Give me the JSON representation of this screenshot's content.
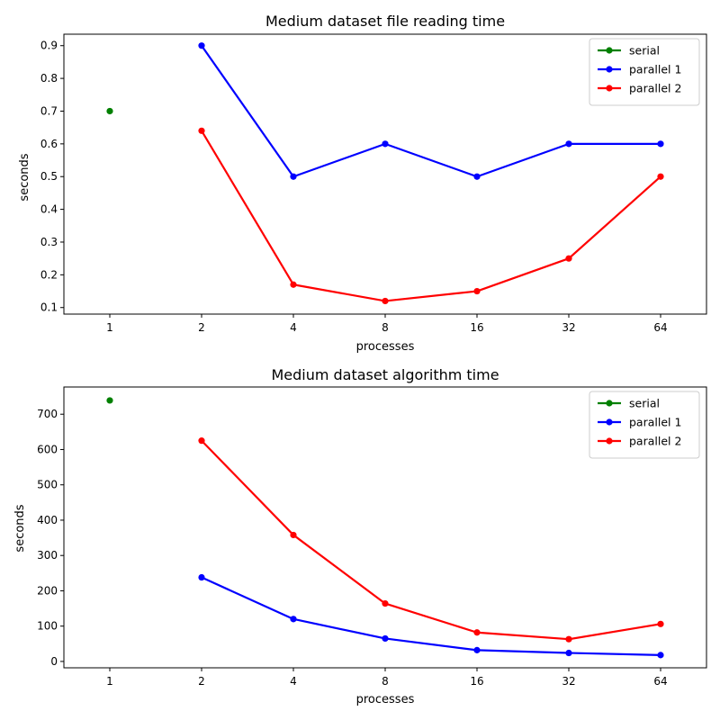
{
  "colors": {
    "serial": "#008000",
    "parallel 1": "#0000ff",
    "parallel 2": "#ff0000"
  },
  "chart_data": [
    {
      "type": "line",
      "title": "Medium dataset file reading time",
      "xlabel": "processes",
      "ylabel": "seconds",
      "categories": [
        "1",
        "2",
        "4",
        "8",
        "16",
        "32",
        "64"
      ],
      "yticks": [
        "0.1",
        "0.2",
        "0.3",
        "0.4",
        "0.5",
        "0.6",
        "0.7",
        "0.8",
        "0.9"
      ],
      "ylim": [
        0.08,
        0.935
      ],
      "legend": "top-right",
      "grid": false,
      "series": [
        {
          "name": "serial",
          "x": [
            "1"
          ],
          "values": [
            0.7
          ]
        },
        {
          "name": "parallel 1",
          "x": [
            "2",
            "4",
            "8",
            "16",
            "32",
            "64"
          ],
          "values": [
            0.9,
            0.5,
            0.6,
            0.5,
            0.6,
            0.6
          ]
        },
        {
          "name": "parallel 2",
          "x": [
            "2",
            "4",
            "8",
            "16",
            "32",
            "64"
          ],
          "values": [
            0.64,
            0.17,
            0.12,
            0.15,
            0.25,
            0.5
          ]
        }
      ]
    },
    {
      "type": "line",
      "title": "Medium dataset algorithm time",
      "xlabel": "processes",
      "ylabel": "seconds",
      "categories": [
        "1",
        "2",
        "4",
        "8",
        "16",
        "32",
        "64"
      ],
      "yticks": [
        "0",
        "100",
        "200",
        "300",
        "400",
        "500",
        "600",
        "700"
      ],
      "ylim": [
        -18,
        777
      ],
      "legend": "top-right",
      "grid": false,
      "series": [
        {
          "name": "serial",
          "x": [
            "1"
          ],
          "values": [
            739
          ]
        },
        {
          "name": "parallel 1",
          "x": [
            "2",
            "4",
            "8",
            "16",
            "32",
            "64"
          ],
          "values": [
            238,
            120,
            65,
            32,
            24,
            18
          ]
        },
        {
          "name": "parallel 2",
          "x": [
            "2",
            "4",
            "8",
            "16",
            "32",
            "64"
          ],
          "values": [
            625,
            358,
            164,
            82,
            63,
            106
          ]
        }
      ]
    }
  ]
}
